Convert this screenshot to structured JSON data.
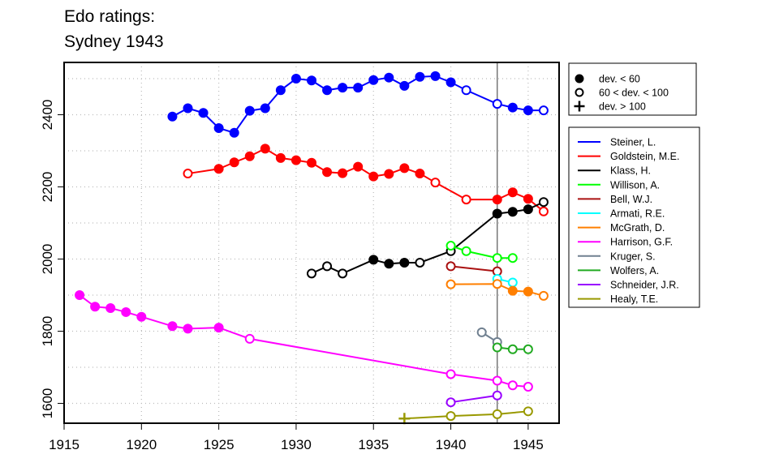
{
  "title": {
    "line1": "Edo ratings:",
    "line2": "Sydney 1943"
  },
  "legend_markers": [
    {
      "symbol": "filled-circle",
      "label": "dev. < 60"
    },
    {
      "symbol": "open-circle",
      "label": "60 < dev. < 100"
    },
    {
      "symbol": "plus",
      "label": "dev. > 100"
    }
  ],
  "chart_data": {
    "type": "line",
    "title": "Edo ratings: Sydney 1943",
    "xlim": [
      1915,
      1947
    ],
    "ylim": [
      1545,
      2545
    ],
    "x_ticks": [
      1915,
      1920,
      1925,
      1930,
      1935,
      1940,
      1945
    ],
    "y_ticks": [
      1600,
      1800,
      2000,
      2200,
      2400
    ],
    "grid": true,
    "reference_line_x": 1943,
    "legend_position": "right",
    "series": [
      {
        "name": "Steiner, L.",
        "color": "#0000ff",
        "points": [
          [
            1922,
            2395,
            "f"
          ],
          [
            1923,
            2418,
            "f"
          ],
          [
            1924,
            2405,
            "f"
          ],
          [
            1925,
            2363,
            "f"
          ],
          [
            1926,
            2350,
            "f"
          ],
          [
            1927,
            2411,
            "f"
          ],
          [
            1928,
            2418,
            "f"
          ],
          [
            1929,
            2468,
            "f"
          ],
          [
            1930,
            2500,
            "f"
          ],
          [
            1931,
            2495,
            "f"
          ],
          [
            1932,
            2468,
            "f"
          ],
          [
            1933,
            2475,
            "f"
          ],
          [
            1934,
            2475,
            "f"
          ],
          [
            1935,
            2496,
            "f"
          ],
          [
            1936,
            2503,
            "f"
          ],
          [
            1937,
            2480,
            "f"
          ],
          [
            1938,
            2505,
            "f"
          ],
          [
            1939,
            2507,
            "f"
          ],
          [
            1940,
            2490,
            "f"
          ],
          [
            1941,
            2468,
            "o"
          ],
          [
            1943,
            2430,
            "o"
          ],
          [
            1944,
            2420,
            "f"
          ],
          [
            1945,
            2412,
            "f"
          ],
          [
            1946,
            2412,
            "o"
          ]
        ]
      },
      {
        "name": "Goldstein, M.E.",
        "color": "#ff0000",
        "points": [
          [
            1923,
            2237,
            "o"
          ],
          [
            1925,
            2250,
            "f"
          ],
          [
            1926,
            2268,
            "f"
          ],
          [
            1927,
            2285,
            "f"
          ],
          [
            1928,
            2306,
            "f"
          ],
          [
            1929,
            2280,
            "f"
          ],
          [
            1930,
            2274,
            "f"
          ],
          [
            1931,
            2267,
            "f"
          ],
          [
            1932,
            2241,
            "f"
          ],
          [
            1933,
            2238,
            "f"
          ],
          [
            1934,
            2256,
            "f"
          ],
          [
            1935,
            2229,
            "f"
          ],
          [
            1936,
            2236,
            "f"
          ],
          [
            1937,
            2252,
            "f"
          ],
          [
            1938,
            2237,
            "f"
          ],
          [
            1939,
            2212,
            "o"
          ],
          [
            1941,
            2165,
            "o"
          ],
          [
            1943,
            2165,
            "f"
          ],
          [
            1944,
            2185,
            "f"
          ],
          [
            1945,
            2167,
            "f"
          ],
          [
            1946,
            2132,
            "o"
          ]
        ]
      },
      {
        "name": "Klass, H.",
        "color": "#000000",
        "points": [
          [
            1931,
            1960,
            "o"
          ],
          [
            1932,
            1980,
            "o"
          ],
          [
            1933,
            1960,
            "o"
          ],
          [
            1935,
            1998,
            "f"
          ],
          [
            1936,
            1987,
            "f"
          ],
          [
            1937,
            1990,
            "f"
          ],
          [
            1938,
            1990,
            "o"
          ],
          [
            1940,
            2022,
            "o"
          ],
          [
            1943,
            2126,
            "f"
          ],
          [
            1944,
            2131,
            "f"
          ],
          [
            1945,
            2138,
            "f"
          ],
          [
            1946,
            2158,
            "o"
          ]
        ]
      },
      {
        "name": "Willison, A.",
        "color": "#00ff00",
        "points": [
          [
            1940,
            2037,
            "o"
          ],
          [
            1941,
            2022,
            "o"
          ],
          [
            1943,
            2003,
            "o"
          ],
          [
            1944,
            2003,
            "o"
          ]
        ]
      },
      {
        "name": "Bell, W.J.",
        "color": "#aa1111",
        "points": [
          [
            1940,
            1980,
            "o"
          ],
          [
            1943,
            1966,
            "o"
          ]
        ]
      },
      {
        "name": "Armati, R.E.",
        "color": "#00ffff",
        "points": [
          [
            1943,
            1945,
            "o"
          ],
          [
            1944,
            1935,
            "o"
          ]
        ]
      },
      {
        "name": "McGrath, D.",
        "color": "#ff7f00",
        "points": [
          [
            1940,
            1930,
            "o"
          ],
          [
            1943,
            1931,
            "o"
          ],
          [
            1944,
            1912,
            "f"
          ],
          [
            1945,
            1910,
            "f"
          ],
          [
            1946,
            1898,
            "o"
          ]
        ]
      },
      {
        "name": "Harrison, G.F.",
        "color": "#ff00ff",
        "points": [
          [
            1916,
            1900,
            "f"
          ],
          [
            1917,
            1868,
            "f"
          ],
          [
            1918,
            1864,
            "f"
          ],
          [
            1919,
            1853,
            "f"
          ],
          [
            1920,
            1840,
            "f"
          ],
          [
            1922,
            1814,
            "f"
          ],
          [
            1923,
            1807,
            "f"
          ],
          [
            1925,
            1810,
            "f"
          ],
          [
            1927,
            1779,
            "o"
          ],
          [
            1940,
            1681,
            "o"
          ],
          [
            1943,
            1663,
            "o"
          ],
          [
            1944,
            1650,
            "o"
          ],
          [
            1945,
            1646,
            "o"
          ]
        ]
      },
      {
        "name": "Kruger, S.",
        "color": "#708090",
        "points": [
          [
            1942,
            1797,
            "o"
          ],
          [
            1943,
            1770,
            "o"
          ]
        ]
      },
      {
        "name": "Wolfers, A.",
        "color": "#22aa22",
        "points": [
          [
            1943,
            1755,
            "o"
          ],
          [
            1944,
            1750,
            "o"
          ],
          [
            1945,
            1750,
            "o"
          ]
        ]
      },
      {
        "name": "Schneider, J.R.",
        "color": "#9900ff",
        "points": [
          [
            1940,
            1603,
            "o"
          ],
          [
            1943,
            1622,
            "o"
          ]
        ]
      },
      {
        "name": "Healy, T.E.",
        "color": "#999900",
        "points": [
          [
            1937,
            1558,
            "p"
          ],
          [
            1940,
            1565,
            "o"
          ],
          [
            1943,
            1570,
            "o"
          ],
          [
            1945,
            1578,
            "o"
          ]
        ]
      }
    ]
  }
}
